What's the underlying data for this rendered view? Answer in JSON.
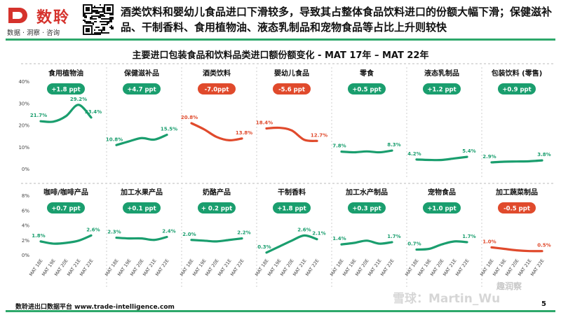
{
  "brand": {
    "name": "数聆",
    "tagline": "数据 · 洞察 · 咨询"
  },
  "headline": "酒类饮料和婴幼儿食品进口下滑较多，导致其占整体食品饮料进口的份额大幅下滑；保健滋补品、干制香料、食用植物油、液态乳制品和宠物食品等占比上升则较快",
  "chart_title": "主要进口包装食品和饮料品类进口额份额变化 - MAT 17年 – MAT 22年",
  "footer": "数聆进出口数据平台 www.trade-intelligence.com",
  "page_number": "5",
  "watermark": "雪球：Martin_Wu",
  "watermark_2": "趣润察",
  "colors": {
    "up": "#1a9e6e",
    "down": "#e04a2c",
    "accent": "#2ea86b",
    "brand": "#d5322c"
  },
  "chart_data": {
    "type": "line",
    "x": [
      "MAT 18年",
      "MAT 19年",
      "MAT 20年",
      "MAT 21年",
      "MAT 22年"
    ],
    "axis_labels_shown": [
      "MAT 18E",
      "MAT 19E",
      "MAT 20E",
      "MAT 21E",
      "MAT 22E"
    ],
    "panels": [
      {
        "name": "食用植物油",
        "badge": "+1.8 ppt",
        "trend": "up",
        "row": 0,
        "values": [
          21.7,
          21.5,
          24.0,
          29.2,
          23.4
        ],
        "labels": [
          "21.7%",
          "",
          "",
          "29.2%",
          "23.4%"
        ]
      },
      {
        "name": "保健滋补品",
        "badge": "+4.7 ppt",
        "trend": "up",
        "row": 0,
        "values": [
          10.8,
          12.5,
          14.0,
          13.3,
          15.5
        ],
        "labels": [
          "10.8%",
          "",
          "",
          "",
          "15.5%"
        ]
      },
      {
        "name": "酒类饮料",
        "badge": "-7.0ppt",
        "trend": "down",
        "row": 0,
        "values": [
          20.8,
          18.0,
          14.5,
          13.0,
          13.8
        ],
        "labels": [
          "20.8%",
          "",
          "",
          "",
          "13.8%"
        ]
      },
      {
        "name": "婴幼儿食品",
        "badge": "-5.6 ppt",
        "trend": "down",
        "row": 0,
        "values": [
          18.4,
          18.7,
          17.5,
          13.2,
          12.7
        ],
        "labels": [
          "18.4%",
          "",
          "",
          "",
          "12.7%"
        ]
      },
      {
        "name": "零食",
        "badge": "+0.5 ppt",
        "trend": "up",
        "row": 0,
        "values": [
          7.8,
          7.5,
          7.9,
          7.5,
          8.3
        ],
        "labels": [
          "7.8%",
          "",
          "",
          "",
          "8.3%"
        ]
      },
      {
        "name": "液态乳制品",
        "badge": "+1.2 ppt",
        "trend": "up",
        "row": 0,
        "values": [
          4.2,
          4.0,
          4.0,
          4.7,
          5.4
        ],
        "labels": [
          "4.2%",
          "",
          "",
          "",
          "5.4%"
        ]
      },
      {
        "name": "包装饮料 (零售)",
        "badge": "+0.9 ppt",
        "trend": "up",
        "row": 0,
        "values": [
          2.9,
          3.2,
          3.3,
          3.4,
          3.8
        ],
        "labels": [
          "2.9%",
          "",
          "",
          "",
          "3.8%"
        ]
      },
      {
        "name": "咖啡/咖啡产品",
        "badge": "+0.7 ppt",
        "trend": "up",
        "row": 1,
        "values": [
          1.8,
          1.5,
          1.6,
          1.9,
          2.6
        ],
        "labels": [
          "1.8%",
          "",
          "",
          "",
          "2.6%"
        ]
      },
      {
        "name": "加工水果产品",
        "badge": "+0.1 ppt",
        "trend": "up",
        "row": 1,
        "values": [
          2.3,
          2.2,
          2.2,
          2.0,
          2.4
        ],
        "labels": [
          "2.3%",
          "",
          "",
          "",
          "2.4%"
        ]
      },
      {
        "name": "奶酪产品",
        "badge": "+ 0.2 ppt",
        "trend": "up",
        "row": 1,
        "values": [
          2.0,
          1.9,
          1.8,
          2.0,
          2.2
        ],
        "labels": [
          "2.0%",
          "",
          "",
          "",
          "2.2%"
        ]
      },
      {
        "name": "干制香料",
        "badge": "+1.8 ppt",
        "trend": "up",
        "row": 1,
        "values": [
          0.3,
          1.1,
          1.9,
          2.6,
          2.1
        ],
        "labels": [
          "0.3%",
          "",
          "",
          "2.6%",
          "2.1%"
        ]
      },
      {
        "name": "加工水产制品",
        "badge": "+0.3 ppt",
        "trend": "up",
        "row": 1,
        "values": [
          1.4,
          1.6,
          1.9,
          1.5,
          1.7
        ],
        "labels": [
          "1.4%",
          "",
          "",
          "",
          "1.7%"
        ]
      },
      {
        "name": "宠物食品",
        "badge": "+1.0 ppt",
        "trend": "up",
        "row": 1,
        "values": [
          0.7,
          0.8,
          1.4,
          1.8,
          1.7
        ],
        "labels": [
          "0.7%",
          "",
          "",
          "",
          "1.7%"
        ]
      },
      {
        "name": "加工蔬菜制品",
        "badge": "-0.5 ppt",
        "trend": "down",
        "row": 1,
        "values": [
          1.0,
          0.8,
          0.6,
          0.5,
          0.5
        ],
        "labels": [
          "1.0%",
          "",
          "",
          "",
          "0.5%"
        ]
      }
    ],
    "rows": [
      {
        "ylim": [
          0,
          40
        ],
        "ticks": [
          "0%",
          "10%",
          "20%",
          "30%",
          "40%"
        ],
        "tick_values": [
          0,
          10,
          20,
          30,
          40
        ]
      },
      {
        "ylim": [
          0,
          8
        ],
        "ticks": [
          "0%",
          "2%",
          "4%",
          "6%",
          "8%"
        ],
        "tick_values": [
          0,
          2,
          4,
          6,
          8
        ]
      }
    ],
    "grid": false,
    "legend": "none"
  }
}
